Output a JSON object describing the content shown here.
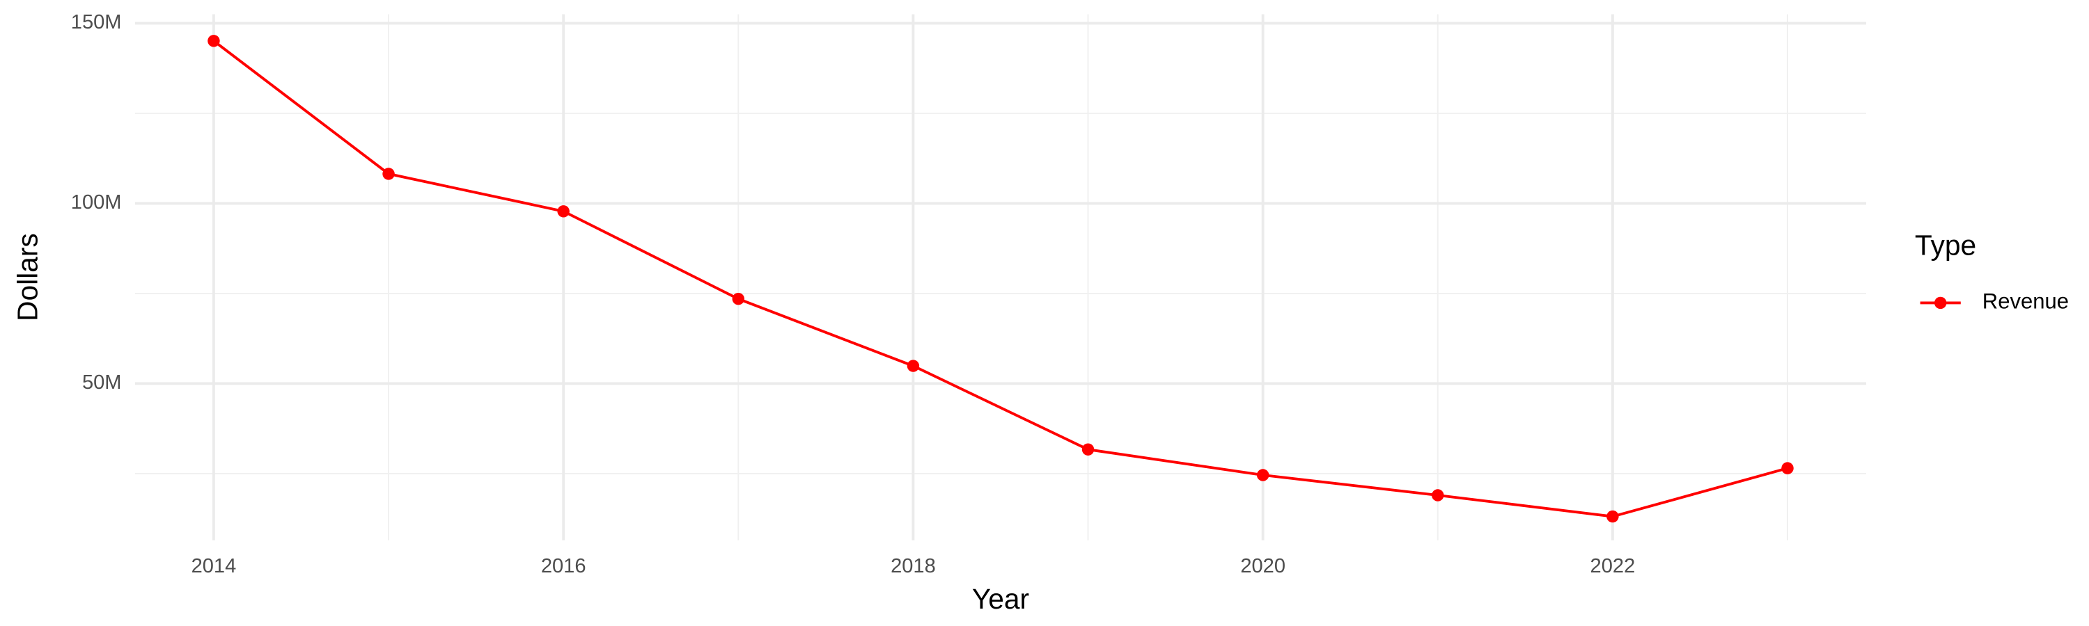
{
  "chart_data": {
    "type": "line",
    "x_label": "Year",
    "y_label": "Dollars",
    "legend_title": "Type",
    "legend_position": "right",
    "grid": true,
    "x": [
      2014,
      2015,
      2016,
      2017,
      2018,
      2019,
      2020,
      2021,
      2022,
      2023
    ],
    "series": [
      {
        "name": "Revenue",
        "color": "#ff0000",
        "values": [
          145100000,
          108200000,
          97800000,
          73500000,
          54900000,
          31700000,
          24600000,
          19000000,
          13100000,
          26500000
        ]
      }
    ],
    "xlim": [
      2013.55,
      2023.45
    ],
    "xticks": [
      2014,
      2016,
      2018,
      2020,
      2022
    ],
    "ylim": [
      6500000,
      152500000
    ],
    "yticks": [
      {
        "value": 50000000,
        "label": "50M"
      },
      {
        "value": 100000000,
        "label": "100M"
      },
      {
        "value": 150000000,
        "label": "150M"
      }
    ]
  }
}
